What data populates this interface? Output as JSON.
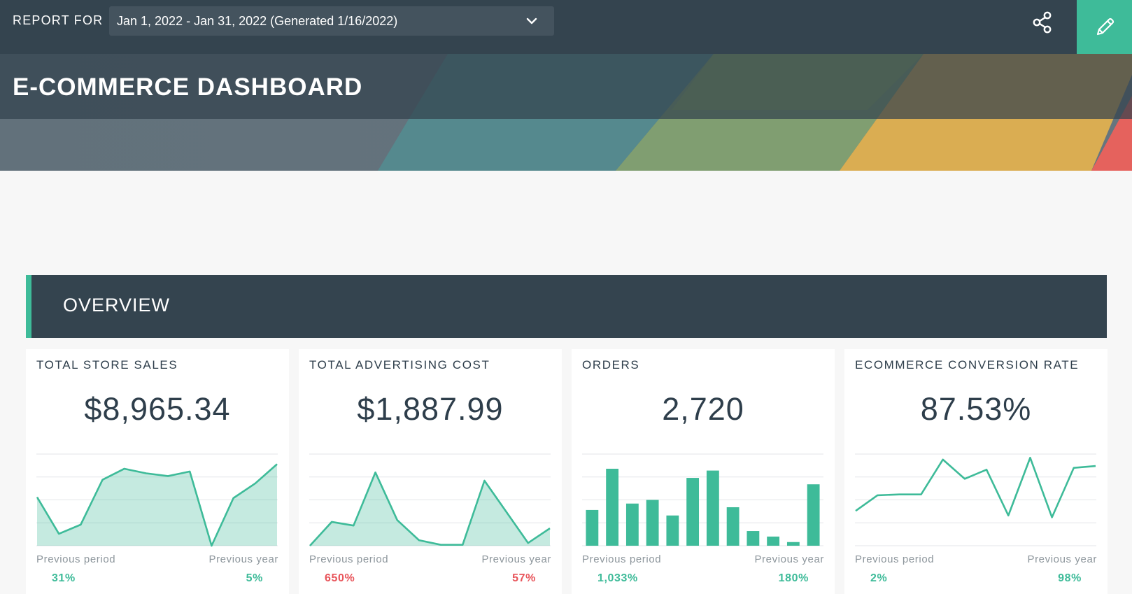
{
  "header": {
    "report_label": "REPORT FOR",
    "date_range": "Jan 1, 2022 - Jan 31, 2022 (Generated 1/16/2022)",
    "title": "E-COMMERCE DASHBOARD"
  },
  "icons": {
    "dropdown": "chevron-down-icon",
    "share": "share-icon",
    "edit": "pencil-icon"
  },
  "colors": {
    "accent": "#3ebb99",
    "header_bg": "#34444f",
    "negative": "#e8545a"
  },
  "section": {
    "title": "OVERVIEW"
  },
  "cards": [
    {
      "title": "TOTAL STORE SALES",
      "value": "$8,965.34",
      "prev_period_label": "Previous period",
      "prev_period_value": "31%",
      "prev_period_trend": "positive",
      "prev_year_label": "Previous year",
      "prev_year_value": "5%",
      "prev_year_trend": "positive"
    },
    {
      "title": "TOTAL ADVERTISING COST",
      "value": "$1,887.99",
      "prev_period_label": "Previous period",
      "prev_period_value": "650%",
      "prev_period_trend": "negative",
      "prev_year_label": "Previous year",
      "prev_year_value": "57%",
      "prev_year_trend": "negative"
    },
    {
      "title": "ORDERS",
      "value": "2,720",
      "prev_period_label": "Previous period",
      "prev_period_value": "1,033%",
      "prev_period_trend": "positive",
      "prev_year_label": "Previous year",
      "prev_year_value": "180%",
      "prev_year_trend": "positive"
    },
    {
      "title": "ECOMMERCE CONVERSION RATE",
      "value": "87.53%",
      "prev_period_label": "Previous period",
      "prev_period_value": "2%",
      "prev_period_trend": "positive",
      "prev_year_label": "Previous year",
      "prev_year_value": "98%",
      "prev_year_trend": "positive"
    }
  ],
  "chart_data": [
    {
      "type": "area",
      "values": [
        0.53,
        0.13,
        0.23,
        0.72,
        0.84,
        0.79,
        0.76,
        0.81,
        0.0,
        0.52,
        0.68,
        0.89
      ],
      "ylim": [
        0,
        1
      ],
      "grid": true
    },
    {
      "type": "area",
      "values": [
        0.0,
        0.26,
        0.22,
        0.8,
        0.28,
        0.06,
        0.01,
        0.01,
        0.71,
        0.37,
        0.03,
        0.19
      ],
      "ylim": [
        0,
        1
      ],
      "grid": true
    },
    {
      "type": "bar",
      "values": [
        0.39,
        0.84,
        0.46,
        0.5,
        0.33,
        0.74,
        0.82,
        0.42,
        0.16,
        0.1,
        0.04,
        0.67
      ],
      "ylim": [
        0,
        1
      ],
      "grid": true
    },
    {
      "type": "line",
      "values": [
        0.38,
        0.55,
        0.56,
        0.56,
        0.94,
        0.73,
        0.83,
        0.33,
        0.96,
        0.31,
        0.85,
        0.87
      ],
      "ylim": [
        0,
        1
      ],
      "grid": true
    }
  ]
}
